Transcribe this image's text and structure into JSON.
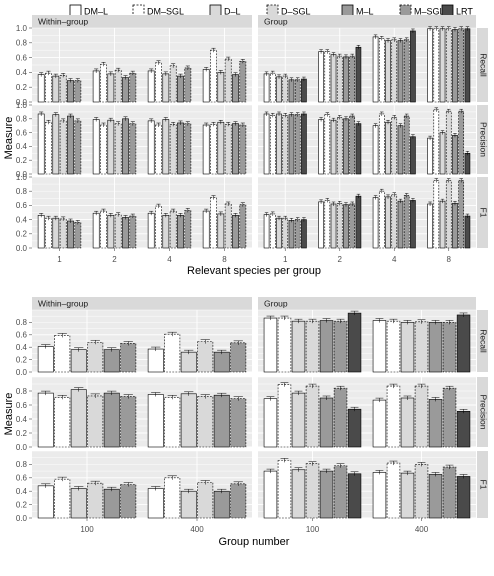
{
  "legend": [
    {
      "name": "DM–L",
      "fill": "#ffffff",
      "dash": "solid"
    },
    {
      "name": "DM–SGL",
      "fill": "#ffffff",
      "dash": "dashed"
    },
    {
      "name": "D–L",
      "fill": "#d9d9d9",
      "dash": "solid"
    },
    {
      "name": "D–SGL",
      "fill": "#d9d9d9",
      "dash": "dashed"
    },
    {
      "name": "M–L",
      "fill": "#9a9a9a",
      "dash": "solid"
    },
    {
      "name": "M–SGL",
      "fill": "#9a9a9a",
      "dash": "dashed"
    },
    {
      "name": "LRT",
      "fill": "#4a4a4a",
      "dash": "solid"
    }
  ],
  "colors": {
    "panel_bg": "#ebebeb",
    "strip_bg": "#d9d9d9",
    "grid": "#ffffff",
    "bar_edge": "#000000"
  },
  "chart_data": [
    {
      "type": "bar",
      "xlabel": "Relevant species per group",
      "ylabel": "Measure",
      "categories": [
        "1",
        "2",
        "4",
        "8"
      ],
      "column_strips": [
        "Within–group",
        "Group"
      ],
      "row_strips": [
        "Recall",
        "Precision",
        "F1"
      ],
      "ylim": [
        0,
        1
      ],
      "yticks": [
        "0.0",
        "0.2",
        "0.4",
        "0.6",
        "0.8",
        "1.0"
      ],
      "panels": [
        {
          "row": "Recall",
          "column": "Within–group",
          "series": [
            {
              "name": "DM–L",
              "values": [
                0.37,
                0.42,
                0.42,
                0.44
              ]
            },
            {
              "name": "DM–SGL",
              "values": [
                0.39,
                0.51,
                0.53,
                0.7
              ]
            },
            {
              "name": "D–L",
              "values": [
                0.35,
                0.38,
                0.38,
                0.4
              ]
            },
            {
              "name": "D–SGL",
              "values": [
                0.36,
                0.43,
                0.49,
                0.58
              ]
            },
            {
              "name": "M–L",
              "values": [
                0.29,
                0.33,
                0.35,
                0.37
              ]
            },
            {
              "name": "M–SGL",
              "values": [
                0.29,
                0.39,
                0.46,
                0.55
              ]
            }
          ]
        },
        {
          "row": "Recall",
          "column": "Group",
          "series": [
            {
              "name": "DM–L",
              "values": [
                0.38,
                0.68,
                0.88,
                0.99
              ]
            },
            {
              "name": "DM–SGL",
              "values": [
                0.39,
                0.68,
                0.86,
                0.99
              ]
            },
            {
              "name": "D–L",
              "values": [
                0.34,
                0.64,
                0.83,
                0.99
              ]
            },
            {
              "name": "D–SGL",
              "values": [
                0.35,
                0.62,
                0.84,
                0.99
              ]
            },
            {
              "name": "M–L",
              "values": [
                0.3,
                0.61,
                0.83,
                0.98
              ]
            },
            {
              "name": "M–SGL",
              "values": [
                0.3,
                0.62,
                0.84,
                0.99
              ]
            },
            {
              "name": "LRT",
              "values": [
                0.31,
                0.74,
                0.96,
                0.99
              ]
            }
          ]
        },
        {
          "row": "Precision",
          "column": "Within–group",
          "series": [
            {
              "name": "DM–L",
              "values": [
                0.87,
                0.79,
                0.77,
                0.71
              ]
            },
            {
              "name": "DM–SGL",
              "values": [
                0.75,
                0.71,
                0.71,
                0.72
              ]
            },
            {
              "name": "D–L",
              "values": [
                0.86,
                0.78,
                0.79,
                0.75
              ]
            },
            {
              "name": "D–SGL",
              "values": [
                0.77,
                0.73,
                0.72,
                0.72
              ]
            },
            {
              "name": "M–L",
              "values": [
                0.84,
                0.8,
                0.74,
                0.73
              ]
            },
            {
              "name": "M–SGL",
              "values": [
                0.77,
                0.73,
                0.73,
                0.71
              ]
            }
          ]
        },
        {
          "row": "Precision",
          "column": "Group",
          "series": [
            {
              "name": "DM–L",
              "values": [
                0.87,
                0.79,
                0.7,
                0.52
              ]
            },
            {
              "name": "DM–SGL",
              "values": [
                0.85,
                0.86,
                0.87,
                0.93
              ]
            },
            {
              "name": "D–L",
              "values": [
                0.87,
                0.78,
                0.75,
                0.6
              ]
            },
            {
              "name": "D–SGL",
              "values": [
                0.85,
                0.82,
                0.82,
                0.91
              ]
            },
            {
              "name": "M–L",
              "values": [
                0.86,
                0.8,
                0.7,
                0.56
              ]
            },
            {
              "name": "M–SGL",
              "values": [
                0.86,
                0.84,
                0.84,
                0.91
              ]
            },
            {
              "name": "LRT",
              "values": [
                0.87,
                0.73,
                0.54,
                0.3
              ]
            }
          ]
        },
        {
          "row": "F1",
          "column": "Within–group",
          "series": [
            {
              "name": "DM–L",
              "values": [
                0.46,
                0.49,
                0.49,
                0.52
              ]
            },
            {
              "name": "DM–SGL",
              "values": [
                0.42,
                0.52,
                0.59,
                0.71
              ]
            },
            {
              "name": "D–L",
              "values": [
                0.42,
                0.46,
                0.46,
                0.48
              ]
            },
            {
              "name": "D–SGL",
              "values": [
                0.41,
                0.47,
                0.52,
                0.62
              ]
            },
            {
              "name": "M–L",
              "values": [
                0.38,
                0.43,
                0.46,
                0.46
              ]
            },
            {
              "name": "M–SGL",
              "values": [
                0.36,
                0.45,
                0.53,
                0.61
              ]
            }
          ]
        },
        {
          "row": "F1",
          "column": "Group",
          "series": [
            {
              "name": "DM–L",
              "values": [
                0.47,
                0.65,
                0.71,
                0.62
              ]
            },
            {
              "name": "DM–SGL",
              "values": [
                0.48,
                0.67,
                0.8,
                0.95
              ]
            },
            {
              "name": "D–L",
              "values": [
                0.42,
                0.62,
                0.72,
                0.66
              ]
            },
            {
              "name": "D–SGL",
              "values": [
                0.42,
                0.63,
                0.75,
                0.95
              ]
            },
            {
              "name": "M–L",
              "values": [
                0.39,
                0.61,
                0.66,
                0.63
              ]
            },
            {
              "name": "M–SGL",
              "values": [
                0.4,
                0.62,
                0.74,
                0.95
              ]
            },
            {
              "name": "LRT",
              "values": [
                0.4,
                0.73,
                0.67,
                0.45
              ]
            }
          ]
        }
      ]
    },
    {
      "type": "bar",
      "xlabel": "Group number",
      "ylabel": "Measure",
      "categories": [
        "100",
        "400"
      ],
      "column_strips": [
        "Within–group",
        "Group"
      ],
      "row_strips": [
        "Recall",
        "Precision",
        "F1"
      ],
      "ylim": [
        0,
        1
      ],
      "yticks": [
        "0.0",
        "0.2",
        "0.4",
        "0.6",
        "0.8"
      ],
      "panels": [
        {
          "row": "Recall",
          "column": "Within–group",
          "series": [
            {
              "name": "DM–L",
              "values": [
                0.41,
                0.37
              ]
            },
            {
              "name": "DM–SGL",
              "values": [
                0.59,
                0.61
              ]
            },
            {
              "name": "D–L",
              "values": [
                0.36,
                0.32
              ]
            },
            {
              "name": "D–SGL",
              "values": [
                0.48,
                0.49
              ]
            },
            {
              "name": "M–L",
              "values": [
                0.36,
                0.32
              ]
            },
            {
              "name": "M–SGL",
              "values": [
                0.46,
                0.47
              ]
            }
          ]
        },
        {
          "row": "Recall",
          "column": "Group",
          "series": [
            {
              "name": "DM–L",
              "values": [
                0.87,
                0.83
              ]
            },
            {
              "name": "DM–SGL",
              "values": [
                0.87,
                0.82
              ]
            },
            {
              "name": "D–L",
              "values": [
                0.82,
                0.8
              ]
            },
            {
              "name": "D–SGL",
              "values": [
                0.82,
                0.81
              ]
            },
            {
              "name": "M–L",
              "values": [
                0.83,
                0.8
              ]
            },
            {
              "name": "M–SGL",
              "values": [
                0.82,
                0.8
              ]
            },
            {
              "name": "LRT",
              "values": [
                0.95,
                0.92
              ]
            }
          ]
        },
        {
          "row": "Precision",
          "column": "Within–group",
          "series": [
            {
              "name": "DM–L",
              "values": [
                0.77,
                0.75
              ]
            },
            {
              "name": "DM–SGL",
              "values": [
                0.71,
                0.71
              ]
            },
            {
              "name": "D–L",
              "values": [
                0.82,
                0.76
              ]
            },
            {
              "name": "D–SGL",
              "values": [
                0.73,
                0.72
              ]
            },
            {
              "name": "M–L",
              "values": [
                0.77,
                0.74
              ]
            },
            {
              "name": "M–SGL",
              "values": [
                0.72,
                0.69
              ]
            }
          ]
        },
        {
          "row": "Precision",
          "column": "Group",
          "series": [
            {
              "name": "DM–L",
              "values": [
                0.69,
                0.67
              ]
            },
            {
              "name": "DM–SGL",
              "values": [
                0.89,
                0.87
              ]
            },
            {
              "name": "D–L",
              "values": [
                0.77,
                0.7
              ]
            },
            {
              "name": "D–SGL",
              "values": [
                0.87,
                0.87
              ]
            },
            {
              "name": "M–L",
              "values": [
                0.7,
                0.68
              ]
            },
            {
              "name": "M–SGL",
              "values": [
                0.84,
                0.84
              ]
            },
            {
              "name": "LRT",
              "values": [
                0.54,
                0.51
              ]
            }
          ]
        },
        {
          "row": "F1",
          "column": "Within–group",
          "series": [
            {
              "name": "DM–L",
              "values": [
                0.48,
                0.44
              ]
            },
            {
              "name": "DM–SGL",
              "values": [
                0.58,
                0.6
              ]
            },
            {
              "name": "D–L",
              "values": [
                0.44,
                0.4
              ]
            },
            {
              "name": "D–SGL",
              "values": [
                0.52,
                0.53
              ]
            },
            {
              "name": "M–L",
              "values": [
                0.43,
                0.4
              ]
            },
            {
              "name": "M–SGL",
              "values": [
                0.5,
                0.51
              ]
            }
          ]
        },
        {
          "row": "F1",
          "column": "Group",
          "series": [
            {
              "name": "DM–L",
              "values": [
                0.7,
                0.68
              ]
            },
            {
              "name": "DM–SGL",
              "values": [
                0.86,
                0.82
              ]
            },
            {
              "name": "D–L",
              "values": [
                0.72,
                0.67
              ]
            },
            {
              "name": "D–SGL",
              "values": [
                0.81,
                0.8
              ]
            },
            {
              "name": "M–L",
              "values": [
                0.7,
                0.65
              ]
            },
            {
              "name": "M–SGL",
              "values": [
                0.78,
                0.76
              ]
            },
            {
              "name": "LRT",
              "values": [
                0.66,
                0.62
              ]
            }
          ]
        }
      ]
    }
  ]
}
